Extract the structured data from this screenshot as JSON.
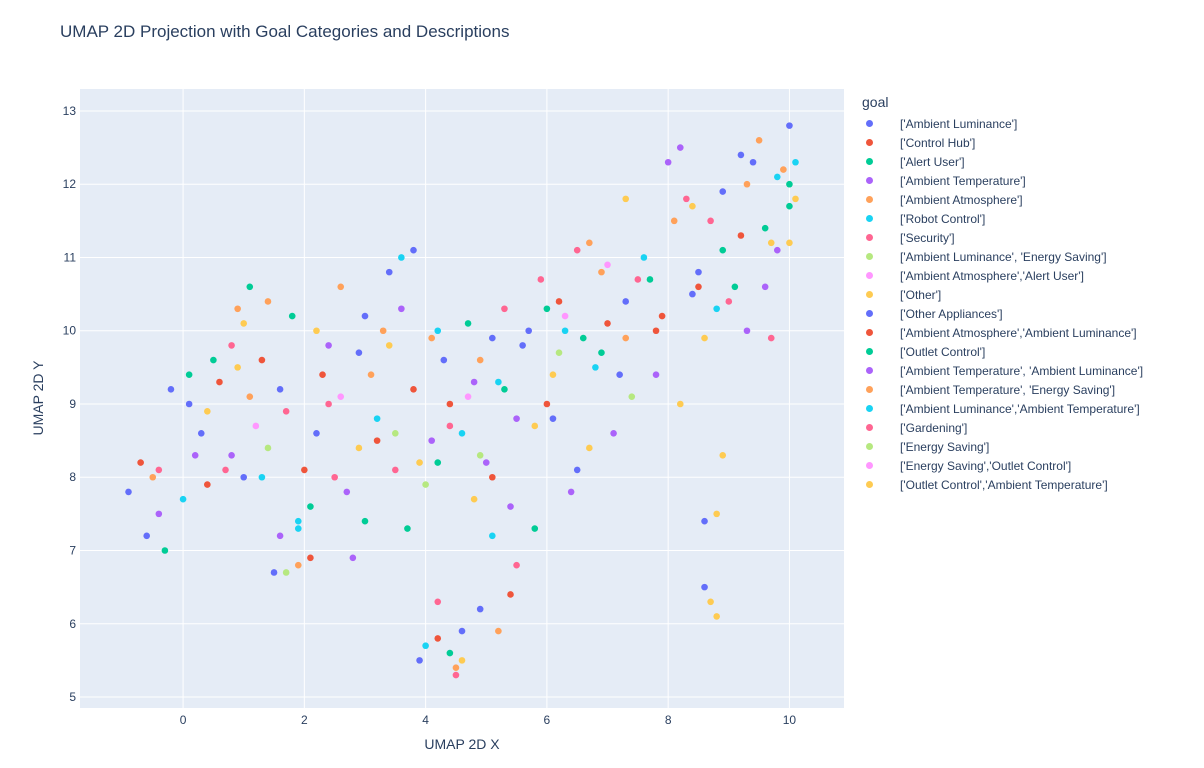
{
  "chart_data": {
    "type": "scatter",
    "title": "UMAP 2D Projection with Goal Categories and Descriptions",
    "xlabel": "UMAP 2D X",
    "ylabel": "UMAP 2D Y",
    "xlim": [
      -1.7,
      10.9
    ],
    "ylim": [
      4.85,
      13.3
    ],
    "xticks": [
      "0",
      "2",
      "4",
      "6",
      "8",
      "10"
    ],
    "yticks": [
      "5",
      "6",
      "7",
      "8",
      "9",
      "10",
      "11",
      "12",
      "13"
    ],
    "grid": true,
    "legend_title": "goal",
    "legend_position": "right",
    "series": [
      {
        "name": "['Ambient Luminance']",
        "color": "#636efa",
        "points": [
          [
            -0.9,
            7.8
          ],
          [
            -0.6,
            7.2
          ],
          [
            -0.2,
            9.2
          ],
          [
            0.3,
            8.6
          ],
          [
            1.0,
            8.0
          ],
          [
            1.5,
            6.7
          ],
          [
            2.2,
            8.6
          ],
          [
            2.9,
            9.7
          ],
          [
            3.4,
            10.8
          ],
          [
            3.8,
            11.1
          ],
          [
            4.3,
            9.6
          ],
          [
            5.1,
            9.9
          ],
          [
            5.6,
            9.8
          ],
          [
            6.1,
            8.8
          ],
          [
            6.5,
            8.1
          ],
          [
            7.2,
            9.4
          ],
          [
            8.4,
            10.5
          ],
          [
            8.9,
            11.9
          ],
          [
            9.4,
            12.3
          ],
          [
            10.0,
            12.8
          ],
          [
            3.9,
            5.5
          ],
          [
            4.6,
            5.9
          ],
          [
            4.9,
            6.2
          ],
          [
            8.6,
            6.5
          ],
          [
            8.6,
            7.4
          ]
        ]
      },
      {
        "name": "['Control Hub']",
        "color": "#ef553b",
        "points": [
          [
            -0.7,
            8.2
          ],
          [
            0.6,
            9.3
          ],
          [
            1.3,
            9.6
          ],
          [
            2.3,
            9.4
          ],
          [
            3.2,
            8.5
          ],
          [
            4.4,
            9.0
          ],
          [
            5.1,
            8.0
          ],
          [
            6.2,
            10.4
          ],
          [
            7.0,
            10.1
          ],
          [
            7.9,
            10.2
          ],
          [
            8.5,
            10.6
          ],
          [
            9.2,
            11.3
          ],
          [
            5.4,
            6.4
          ],
          [
            4.2,
            5.8
          ],
          [
            2.1,
            6.9
          ]
        ]
      },
      {
        "name": "['Alert User']",
        "color": "#00cc96",
        "points": [
          [
            -0.3,
            7.0
          ],
          [
            0.1,
            9.4
          ],
          [
            1.1,
            10.6
          ],
          [
            1.8,
            10.2
          ],
          [
            3.0,
            7.4
          ],
          [
            3.7,
            7.3
          ],
          [
            4.2,
            8.2
          ],
          [
            5.3,
            9.2
          ],
          [
            6.0,
            10.3
          ],
          [
            6.9,
            9.7
          ],
          [
            7.7,
            10.7
          ],
          [
            8.9,
            11.1
          ],
          [
            9.6,
            11.4
          ],
          [
            10.0,
            11.7
          ],
          [
            4.4,
            5.6
          ],
          [
            5.8,
            7.3
          ]
        ]
      },
      {
        "name": "['Ambient Temperature']",
        "color": "#ab63fa",
        "points": [
          [
            -0.4,
            7.5
          ],
          [
            0.8,
            8.3
          ],
          [
            1.6,
            7.2
          ],
          [
            2.4,
            9.8
          ],
          [
            2.8,
            6.9
          ],
          [
            3.6,
            10.3
          ],
          [
            4.8,
            9.3
          ],
          [
            5.5,
            8.8
          ],
          [
            6.4,
            7.8
          ],
          [
            7.1,
            8.6
          ],
          [
            7.8,
            9.4
          ],
          [
            8.2,
            12.5
          ],
          [
            9.3,
            10.0
          ],
          [
            9.8,
            11.1
          ],
          [
            4.1,
            8.5
          ],
          [
            5.0,
            8.2
          ]
        ]
      },
      {
        "name": "['Ambient Atmosphere']",
        "color": "#ffa15a",
        "points": [
          [
            -0.5,
            8.0
          ],
          [
            0.9,
            10.3
          ],
          [
            1.4,
            10.4
          ],
          [
            2.6,
            10.6
          ],
          [
            3.3,
            10.0
          ],
          [
            4.1,
            9.9
          ],
          [
            4.9,
            9.6
          ],
          [
            6.7,
            11.2
          ],
          [
            7.3,
            9.9
          ],
          [
            8.1,
            11.5
          ],
          [
            9.5,
            12.6
          ],
          [
            9.9,
            12.2
          ],
          [
            4.5,
            5.4
          ],
          [
            5.2,
            5.9
          ],
          [
            1.9,
            6.8
          ]
        ]
      },
      {
        "name": "['Robot Control']",
        "color": "#19d3f3",
        "points": [
          [
            0.0,
            7.7
          ],
          [
            1.3,
            8.0
          ],
          [
            1.9,
            7.4
          ],
          [
            3.2,
            8.8
          ],
          [
            3.6,
            11.0
          ],
          [
            4.2,
            10.0
          ],
          [
            5.2,
            9.3
          ],
          [
            6.3,
            10.0
          ],
          [
            6.8,
            9.5
          ],
          [
            8.8,
            10.3
          ],
          [
            9.8,
            12.1
          ],
          [
            5.1,
            7.2
          ],
          [
            4.0,
            5.7
          ]
        ]
      },
      {
        "name": "['Security']",
        "color": "#ff6692",
        "points": [
          [
            -0.4,
            8.1
          ],
          [
            0.8,
            9.8
          ],
          [
            1.7,
            8.9
          ],
          [
            2.5,
            8.0
          ],
          [
            3.5,
            8.1
          ],
          [
            4.4,
            8.7
          ],
          [
            5.3,
            10.3
          ],
          [
            6.5,
            11.1
          ],
          [
            7.5,
            10.7
          ],
          [
            8.3,
            11.8
          ],
          [
            9.0,
            10.4
          ],
          [
            9.7,
            9.9
          ],
          [
            4.2,
            6.3
          ],
          [
            5.5,
            6.8
          ],
          [
            4.5,
            5.3
          ]
        ]
      },
      {
        "name": "['Ambient Luminance', 'Energy Saving']",
        "color": "#b6e880",
        "points": [
          [
            1.7,
            6.7
          ],
          [
            3.5,
            8.6
          ],
          [
            6.2,
            9.7
          ],
          [
            4.9,
            8.3
          ]
        ]
      },
      {
        "name": "['Ambient Atmosphere','Alert User']",
        "color": "#ff97ff",
        "points": [
          [
            1.2,
            8.7
          ],
          [
            4.7,
            9.1
          ],
          [
            7.0,
            10.9
          ]
        ]
      },
      {
        "name": "['Other']",
        "color": "#fecb52",
        "points": [
          [
            0.4,
            8.9
          ],
          [
            1.0,
            10.1
          ],
          [
            2.2,
            10.0
          ],
          [
            2.9,
            8.4
          ],
          [
            3.9,
            8.2
          ],
          [
            4.8,
            7.7
          ],
          [
            5.8,
            8.7
          ],
          [
            6.7,
            8.4
          ],
          [
            7.3,
            11.8
          ],
          [
            8.2,
            9.0
          ],
          [
            8.6,
            9.9
          ],
          [
            9.7,
            11.2
          ],
          [
            10.1,
            11.8
          ],
          [
            8.9,
            8.3
          ],
          [
            8.8,
            7.5
          ],
          [
            8.8,
            6.1
          ],
          [
            8.7,
            6.3
          ],
          [
            4.6,
            5.5
          ]
        ]
      },
      {
        "name": "['Other Appliances']",
        "color": "#636efa",
        "points": [
          [
            0.1,
            9.0
          ],
          [
            1.6,
            9.2
          ],
          [
            3.0,
            10.2
          ],
          [
            5.7,
            10.0
          ],
          [
            7.3,
            10.4
          ],
          [
            9.2,
            12.4
          ],
          [
            8.5,
            10.8
          ]
        ]
      },
      {
        "name": "['Ambient Atmosphere','Ambient Luminance']",
        "color": "#ef553b",
        "points": [
          [
            0.4,
            7.9
          ],
          [
            2.0,
            8.1
          ],
          [
            3.8,
            9.2
          ],
          [
            6.0,
            9.0
          ],
          [
            7.8,
            10.0
          ]
        ]
      },
      {
        "name": "['Outlet Control']",
        "color": "#00cc96",
        "points": [
          [
            0.5,
            9.6
          ],
          [
            2.1,
            7.6
          ],
          [
            4.7,
            10.1
          ],
          [
            6.6,
            9.9
          ],
          [
            9.1,
            10.6
          ],
          [
            10.0,
            12.0
          ]
        ]
      },
      {
        "name": "['Ambient Temperature', 'Ambient Luminance']",
        "color": "#ab63fa",
        "points": [
          [
            0.2,
            8.3
          ],
          [
            2.7,
            7.8
          ],
          [
            5.4,
            7.6
          ],
          [
            8.0,
            12.3
          ],
          [
            9.6,
            10.6
          ]
        ]
      },
      {
        "name": "['Ambient Temperature', 'Energy Saving']",
        "color": "#ffa15a",
        "points": [
          [
            1.1,
            9.1
          ],
          [
            3.1,
            9.4
          ],
          [
            6.9,
            10.8
          ],
          [
            9.3,
            12.0
          ]
        ]
      },
      {
        "name": "['Ambient Luminance','Ambient Temperature']",
        "color": "#19d3f3",
        "points": [
          [
            1.9,
            7.3
          ],
          [
            4.6,
            8.6
          ],
          [
            7.6,
            11.0
          ],
          [
            10.1,
            12.3
          ]
        ]
      },
      {
        "name": "['Gardening']",
        "color": "#ff6692",
        "points": [
          [
            0.7,
            8.1
          ],
          [
            2.4,
            9.0
          ],
          [
            5.9,
            10.7
          ],
          [
            8.7,
            11.5
          ]
        ]
      },
      {
        "name": "['Energy Saving']",
        "color": "#b6e880",
        "points": [
          [
            1.4,
            8.4
          ],
          [
            4.0,
            7.9
          ],
          [
            7.4,
            9.1
          ]
        ]
      },
      {
        "name": "['Energy Saving','Outlet Control']",
        "color": "#ff97ff",
        "points": [
          [
            2.6,
            9.1
          ],
          [
            6.3,
            10.2
          ]
        ]
      },
      {
        "name": "['Outlet Control','Ambient Temperature']",
        "color": "#fecb52",
        "points": [
          [
            0.9,
            9.5
          ],
          [
            3.4,
            9.8
          ],
          [
            6.1,
            9.4
          ],
          [
            8.4,
            11.7
          ],
          [
            10.0,
            11.2
          ]
        ]
      }
    ]
  }
}
